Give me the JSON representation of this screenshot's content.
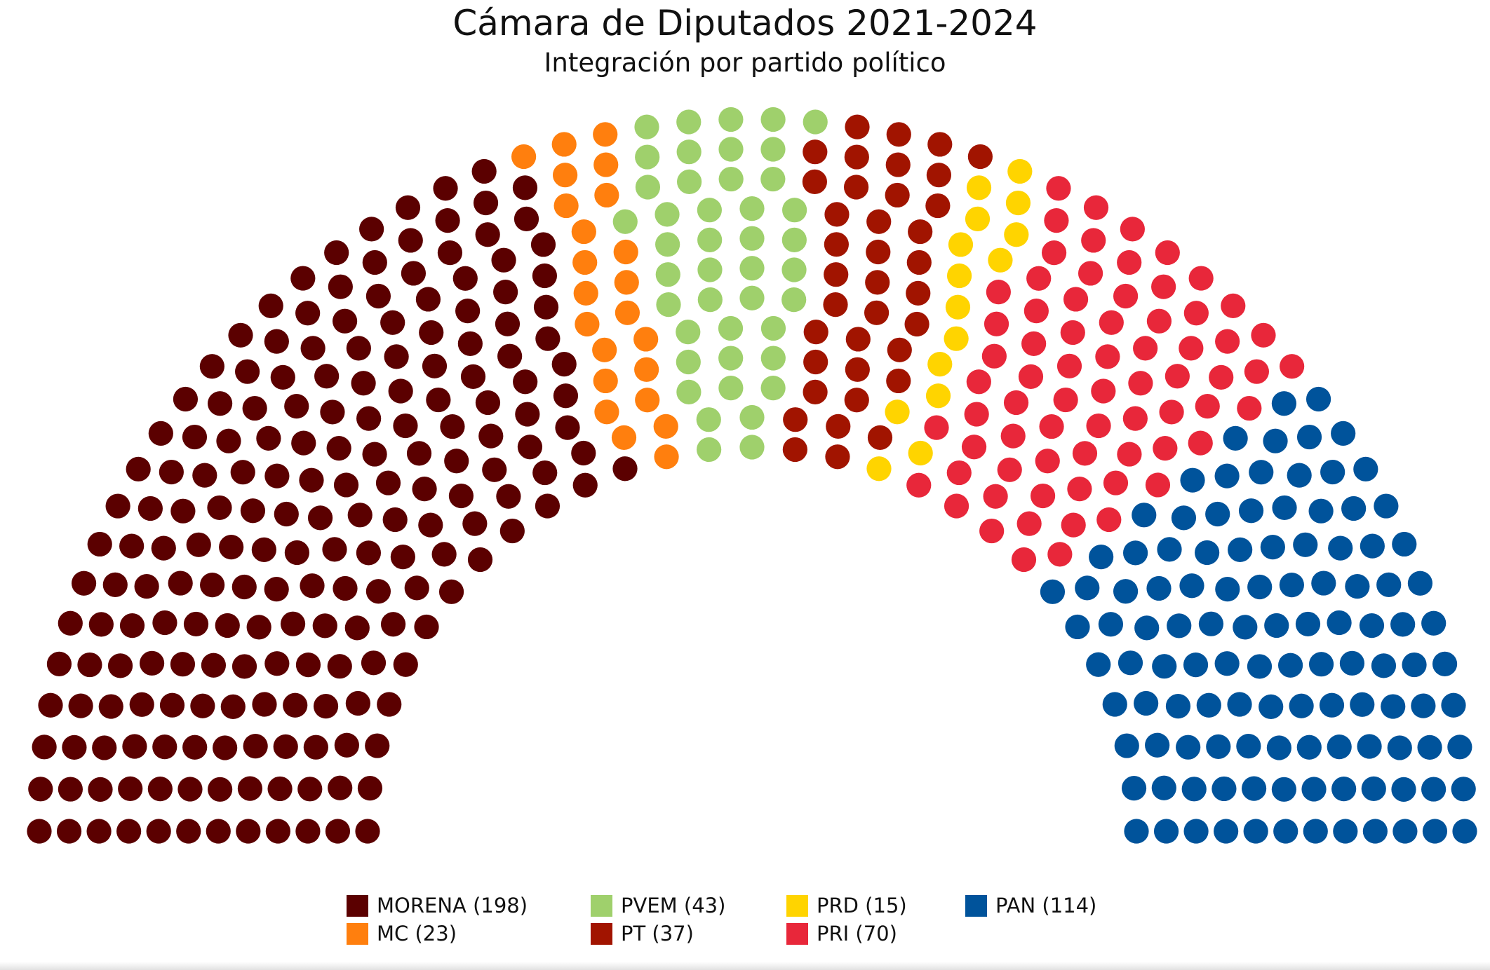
{
  "chart_data": {
    "type": "parliament",
    "title": "Cámara de Diputados 2021-2024",
    "subtitle": "Integración por partido político",
    "total_seats": 500,
    "series": [
      {
        "name": "MORENA (198)",
        "party": "MORENA",
        "value": 198,
        "color": "#5b0000"
      },
      {
        "name": "MC (23)",
        "party": "MC",
        "value": 23,
        "color": "#ff7f0e"
      },
      {
        "name": "PVEM (43)",
        "party": "PVEM",
        "value": 43,
        "color": "#9fd06c"
      },
      {
        "name": "PT (37)",
        "party": "PT",
        "value": 37,
        "color": "#a11400"
      },
      {
        "name": "PRD (15)",
        "party": "PRD",
        "value": 15,
        "color": "#ffd400"
      },
      {
        "name": "PRI (70)",
        "party": "PRI",
        "value": 70,
        "color": "#e8273a"
      },
      {
        "name": "PAN (114)",
        "party": "PAN",
        "value": 114,
        "color": "#00539b"
      }
    ],
    "legend_position": "bottom",
    "grid": false
  }
}
